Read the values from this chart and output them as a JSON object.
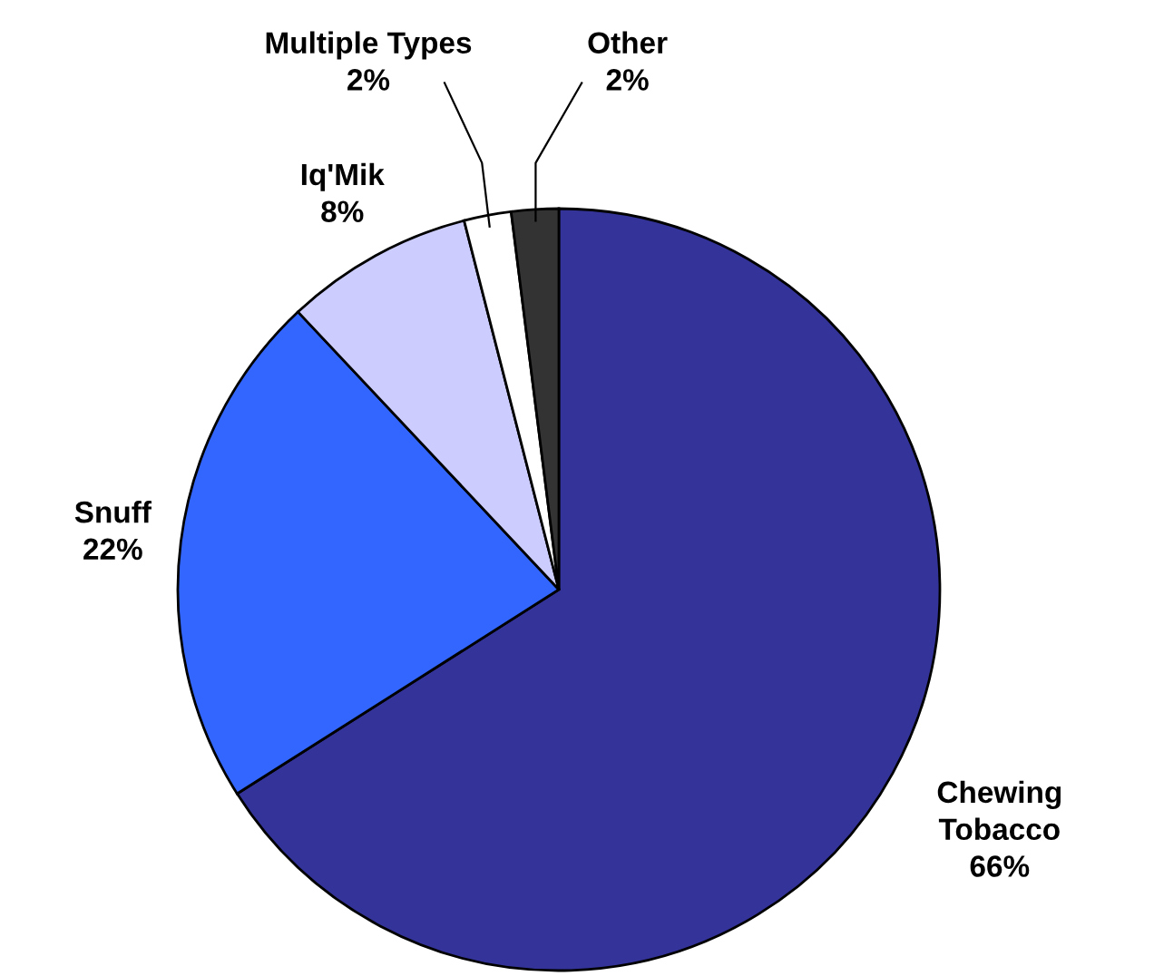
{
  "chart_data": {
    "type": "pie",
    "categories": [
      "Chewing Tobacco",
      "Snuff",
      "Iq'Mik",
      "Multiple Types",
      "Other"
    ],
    "values": [
      66,
      22,
      8,
      2,
      2
    ],
    "colors": [
      "#333399",
      "#3366ff",
      "#ccccff",
      "#ffffff",
      "#333333"
    ],
    "value_labels": [
      "66%",
      "22%",
      "8%",
      "2%",
      "2%"
    ],
    "legend": false
  }
}
